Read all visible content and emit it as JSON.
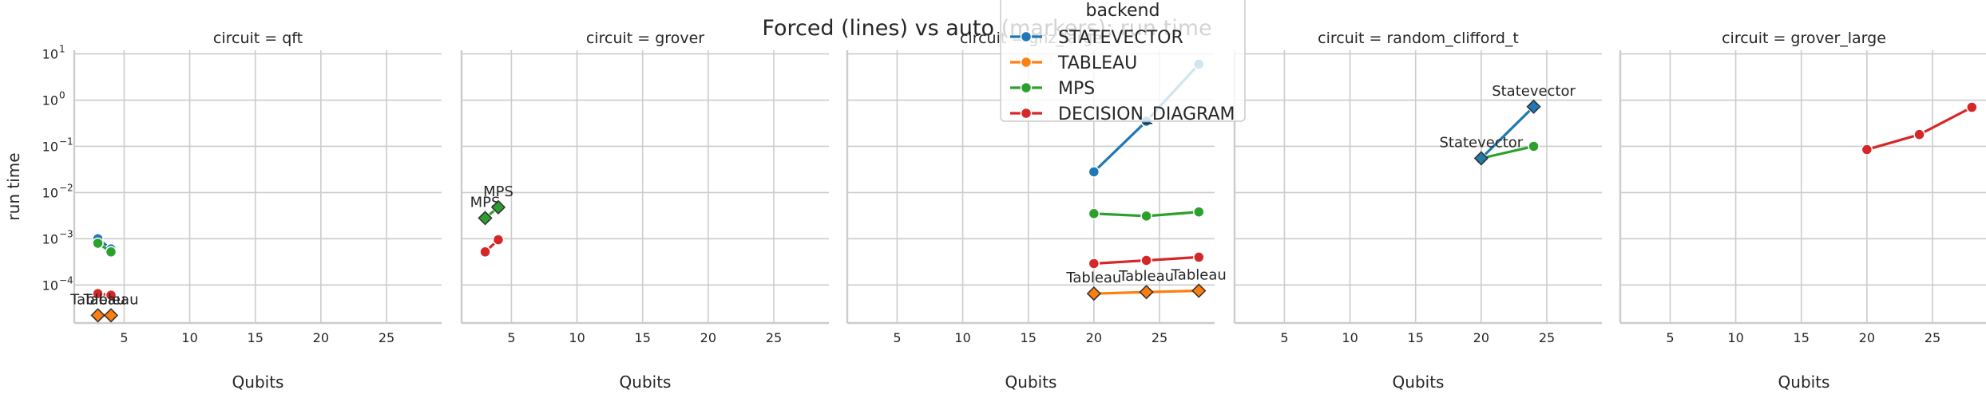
{
  "chart_data": {
    "type": "line",
    "title": "Forced (lines) vs auto (markers): run time",
    "ylabel": "run time",
    "xlabel": "Qubits",
    "yscale": "log",
    "ylim": [
      1.5e-05,
      12
    ],
    "xlim": [
      1.2,
      29.2
    ],
    "xticks": [
      5,
      10,
      15,
      20,
      25
    ],
    "yticks": [
      {
        "exp": -4,
        "label": "10",
        "sup": "−4"
      },
      {
        "exp": -3,
        "label": "10",
        "sup": "−3"
      },
      {
        "exp": -2,
        "label": "10",
        "sup": "−2"
      },
      {
        "exp": -1,
        "label": "10",
        "sup": "−1"
      },
      {
        "exp": 0,
        "label": "10",
        "sup": "0"
      },
      {
        "exp": 1,
        "label": "10",
        "sup": "1"
      }
    ],
    "grid": true,
    "legend": {
      "title": "backend",
      "placement": "top-center",
      "entries": [
        {
          "name": "STATEVECTOR",
          "color": "#1f77b4"
        },
        {
          "name": "TABLEAU",
          "color": "#ff7f0e"
        },
        {
          "name": "MPS",
          "color": "#2ca02c"
        },
        {
          "name": "DECISION_DIAGRAM",
          "color": "#d62728"
        }
      ]
    },
    "panels": [
      {
        "title": "circuit = qft",
        "lines": [
          {
            "backend": "STATEVECTOR",
            "x": [
              3,
              4
            ],
            "y": [
              0.001,
              0.0006
            ]
          },
          {
            "backend": "TABLEAU",
            "x": [
              3,
              4
            ],
            "y": [
              2.2e-05,
              2.2e-05
            ]
          },
          {
            "backend": "MPS",
            "x": [
              3,
              4
            ],
            "y": [
              0.0008,
              0.00052
            ]
          },
          {
            "backend": "DECISION_DIAGRAM",
            "x": [
              3,
              4
            ],
            "y": [
              6.5e-05,
              6e-05
            ]
          }
        ],
        "auto": [
          {
            "backend": "TABLEAU",
            "x": 3,
            "y": 2.2e-05,
            "label": "Tableau"
          },
          {
            "backend": "TABLEAU",
            "x": 4,
            "y": 2.2e-05,
            "label": "Tableau"
          }
        ]
      },
      {
        "title": "circuit = grover",
        "lines": [
          {
            "backend": "MPS",
            "x": [
              3,
              4
            ],
            "y": [
              0.0028,
              0.0048
            ]
          },
          {
            "backend": "DECISION_DIAGRAM",
            "x": [
              3,
              4
            ],
            "y": [
              0.00052,
              0.00095
            ]
          }
        ],
        "auto": [
          {
            "backend": "MPS",
            "x": 3,
            "y": 0.0028,
            "label": "MPS"
          },
          {
            "backend": "MPS",
            "x": 4,
            "y": 0.0048,
            "label": "MPS"
          }
        ]
      },
      {
        "title": "circuit = ghz_large",
        "lines": [
          {
            "backend": "STATEVECTOR",
            "x": [
              20,
              24,
              28
            ],
            "y": [
              0.028,
              0.35,
              6
            ]
          },
          {
            "backend": "TABLEAU",
            "x": [
              20,
              24,
              28
            ],
            "y": [
              6.5e-05,
              7e-05,
              7.5e-05
            ]
          },
          {
            "backend": "MPS",
            "x": [
              20,
              24,
              28
            ],
            "y": [
              0.0035,
              0.0031,
              0.0038
            ]
          },
          {
            "backend": "DECISION_DIAGRAM",
            "x": [
              20,
              24,
              28
            ],
            "y": [
              0.00029,
              0.00034,
              0.0004
            ]
          }
        ],
        "auto": [
          {
            "backend": "TABLEAU",
            "x": 20,
            "y": 6.5e-05,
            "label": "Tableau"
          },
          {
            "backend": "TABLEAU",
            "x": 24,
            "y": 7e-05,
            "label": "Tableau"
          },
          {
            "backend": "TABLEAU",
            "x": 28,
            "y": 7.5e-05,
            "label": "Tableau"
          }
        ]
      },
      {
        "title": "circuit = random_clifford_t",
        "lines": [
          {
            "backend": "STATEVECTOR",
            "x": [
              20,
              24
            ],
            "y": [
              0.055,
              0.72
            ]
          },
          {
            "backend": "MPS",
            "x": [
              20,
              24
            ],
            "y": [
              0.055,
              0.1
            ]
          }
        ],
        "auto": [
          {
            "backend": "STATEVECTOR",
            "x": 20,
            "y": 0.055,
            "label": "Statevector"
          },
          {
            "backend": "STATEVECTOR",
            "x": 24,
            "y": 0.72,
            "label": "Statevector"
          }
        ]
      },
      {
        "title": "circuit = grover_large",
        "lines": [
          {
            "backend": "DECISION_DIAGRAM",
            "x": [
              20,
              24,
              28
            ],
            "y": [
              0.085,
              0.18,
              0.7
            ]
          }
        ],
        "auto": []
      }
    ]
  }
}
